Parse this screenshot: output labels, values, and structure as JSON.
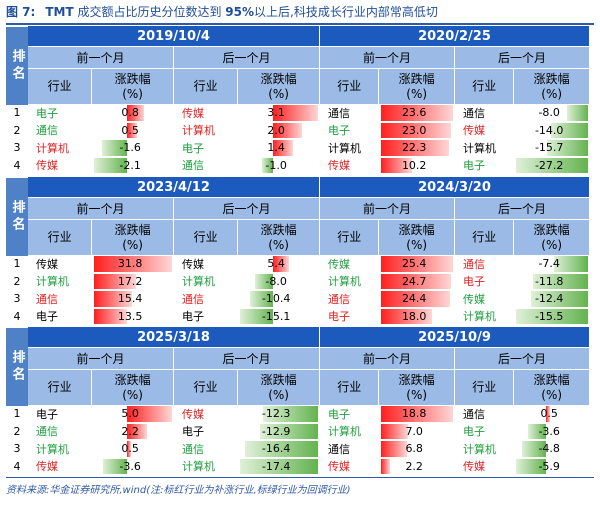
{
  "title": {
    "label": "图 7:",
    "prefix": "TMT",
    "text": " 成交额占比历史分位数达到 ",
    "pct": "95%",
    "suffix": "以上后,科技成长行业内部常高低切"
  },
  "source": "资料来源:华金证券研究所,wind(注:标红行业为补涨行业,标绿行业为回调行业)",
  "rank_label": "排名",
  "period_before": "前一个月",
  "period_after": "后一个月",
  "col_industry": "行业",
  "col_change_1": "涨跌幅",
  "col_change_2": "(%)",
  "colors": {
    "header_dark": "#1c5bbd",
    "header_light": "#9bbbe6",
    "rank_bg": "#4f81c7",
    "red": "#e02020",
    "green": "#1e9e3e"
  },
  "blocks": [
    {
      "left": {
        "date": "2019/10/4",
        "before": [
          {
            "name": "电子",
            "color": "green",
            "value": 0.8
          },
          {
            "name": "通信",
            "color": "green",
            "value": 0.5
          },
          {
            "name": "计算机",
            "color": "red",
            "value": -1.6
          },
          {
            "name": "传媒",
            "color": "red",
            "value": -2.1
          }
        ],
        "after": [
          {
            "name": "传媒",
            "color": "red",
            "value": 3.1
          },
          {
            "name": "计算机",
            "color": "red",
            "value": 2.0
          },
          {
            "name": "电子",
            "color": "green",
            "value": 1.4
          },
          {
            "name": "通信",
            "color": "green",
            "value": -1.0
          }
        ]
      },
      "right": {
        "date": "2020/2/25",
        "before": [
          {
            "name": "通信",
            "color": "black",
            "value": 23.6
          },
          {
            "name": "电子",
            "color": "green",
            "value": 23.0
          },
          {
            "name": "计算机",
            "color": "black",
            "value": 22.3
          },
          {
            "name": "传媒",
            "color": "red",
            "value": 10.2
          }
        ],
        "after": [
          {
            "name": "通信",
            "color": "black",
            "value": -8.0
          },
          {
            "name": "传媒",
            "color": "red",
            "value": -14.0
          },
          {
            "name": "计算机",
            "color": "black",
            "value": -15.7
          },
          {
            "name": "电子",
            "color": "green",
            "value": -27.2
          }
        ]
      }
    },
    {
      "left": {
        "date": "2023/4/12",
        "before": [
          {
            "name": "传媒",
            "color": "black",
            "value": 31.8
          },
          {
            "name": "计算机",
            "color": "green",
            "value": 17.2
          },
          {
            "name": "通信",
            "color": "red",
            "value": 15.4
          },
          {
            "name": "电子",
            "color": "black",
            "value": 13.5
          }
        ],
        "after": [
          {
            "name": "传媒",
            "color": "black",
            "value": 5.4
          },
          {
            "name": "计算机",
            "color": "green",
            "value": -8.0
          },
          {
            "name": "通信",
            "color": "red",
            "value": -10.4
          },
          {
            "name": "电子",
            "color": "black",
            "value": -15.1
          }
        ]
      },
      "right": {
        "date": "2024/3/20",
        "before": [
          {
            "name": "传媒",
            "color": "green",
            "value": 25.4
          },
          {
            "name": "计算机",
            "color": "green",
            "value": 24.7
          },
          {
            "name": "通信",
            "color": "red",
            "value": 24.4
          },
          {
            "name": "电子",
            "color": "red",
            "value": 18.0
          }
        ],
        "after": [
          {
            "name": "通信",
            "color": "red",
            "value": -7.4
          },
          {
            "name": "电子",
            "color": "red",
            "value": -11.8
          },
          {
            "name": "传媒",
            "color": "green",
            "value": -12.4
          },
          {
            "name": "计算机",
            "color": "green",
            "value": -15.5
          }
        ]
      }
    },
    {
      "left": {
        "date": "2025/3/18",
        "before": [
          {
            "name": "电子",
            "color": "black",
            "value": 5.0
          },
          {
            "name": "通信",
            "color": "green",
            "value": 2.2
          },
          {
            "name": "计算机",
            "color": "green",
            "value": 0.5
          },
          {
            "name": "传媒",
            "color": "red",
            "value": -3.6
          }
        ],
        "after": [
          {
            "name": "传媒",
            "color": "red",
            "value": -12.3
          },
          {
            "name": "电子",
            "color": "black",
            "value": -12.9
          },
          {
            "name": "通信",
            "color": "green",
            "value": -16.4
          },
          {
            "name": "计算机",
            "color": "green",
            "value": -17.4
          }
        ]
      },
      "right": {
        "date": "2025/10/9",
        "before": [
          {
            "name": "电子",
            "color": "green",
            "value": 18.8
          },
          {
            "name": "计算机",
            "color": "green",
            "value": 7.0
          },
          {
            "name": "通信",
            "color": "black",
            "value": 6.8
          },
          {
            "name": "传媒",
            "color": "red",
            "value": 2.2
          }
        ],
        "after": [
          {
            "name": "通信",
            "color": "black",
            "value": 0.5
          },
          {
            "name": "电子",
            "color": "green",
            "value": -3.6
          },
          {
            "name": "计算机",
            "color": "green",
            "value": -4.8
          },
          {
            "name": "传媒",
            "color": "red",
            "value": -5.9
          }
        ]
      }
    }
  ]
}
